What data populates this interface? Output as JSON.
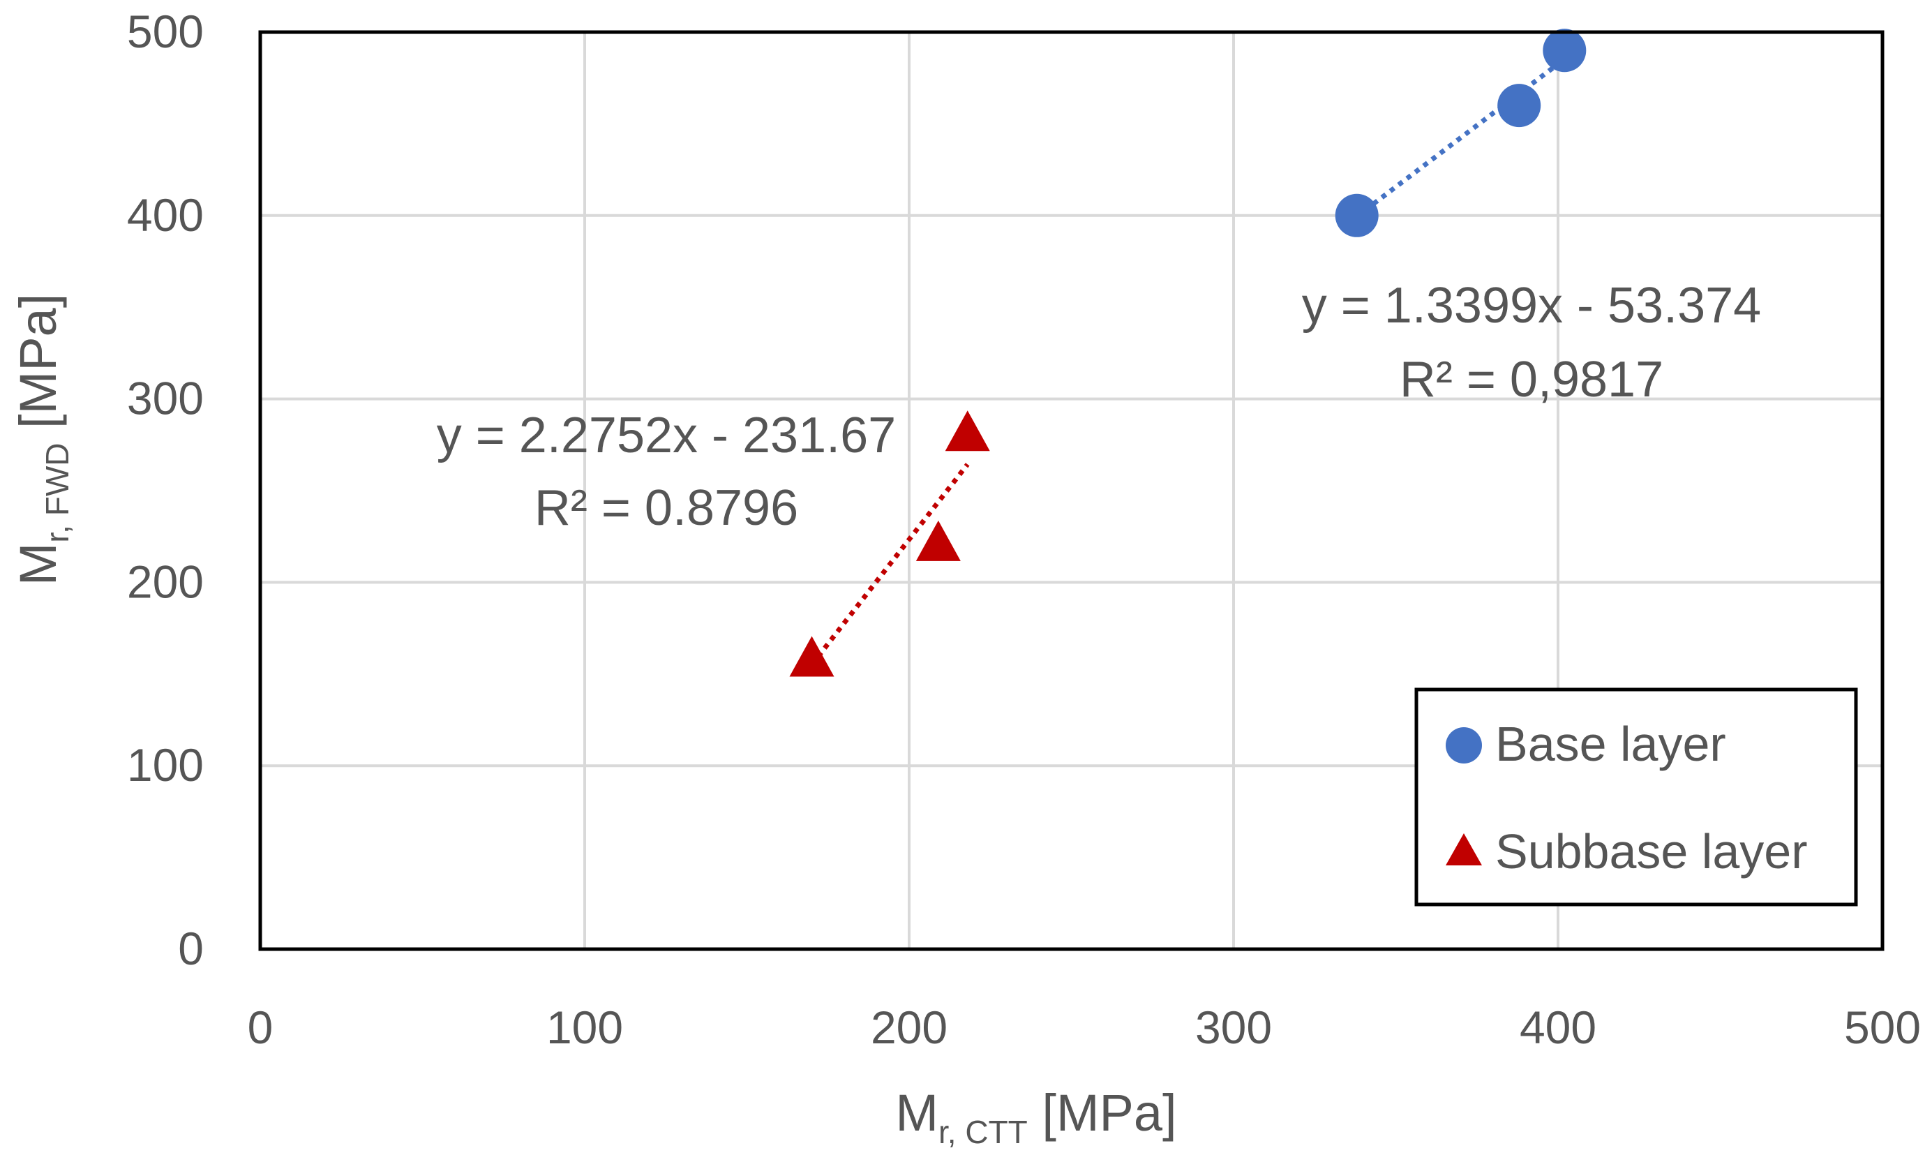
{
  "chart_data": {
    "type": "scatter",
    "title": "",
    "xlabel": {
      "main": "M",
      "sub": "r, CTT",
      "unit": " [MPa]"
    },
    "ylabel": {
      "main": "M",
      "sub": "r, FWD",
      "unit": " [MPa]"
    },
    "xlim": [
      0,
      500
    ],
    "ylim": [
      0,
      500
    ],
    "xticks": [
      0,
      100,
      200,
      300,
      400,
      500
    ],
    "yticks": [
      0,
      100,
      200,
      300,
      400,
      500
    ],
    "grid": true,
    "legend_position": "bottom-right",
    "series": [
      {
        "name": "Base layer",
        "marker": "circle",
        "color": "#4472c4",
        "points": [
          [
            338,
            400
          ],
          [
            388,
            460
          ],
          [
            402,
            490
          ]
        ],
        "trendline": {
          "slope": 1.3399,
          "intercept": -53.374,
          "x_range": [
            338,
            402
          ]
        },
        "equation": "y = 1.3399x - 53.374",
        "r2": "R² = 0,9817"
      },
      {
        "name": "Subbase layer",
        "marker": "triangle",
        "color": "#c00000",
        "points": [
          [
            170,
            157
          ],
          [
            209,
            220
          ],
          [
            218,
            280
          ]
        ],
        "trendline": {
          "slope": 2.2752,
          "intercept": -231.67,
          "x_range": [
            170,
            218
          ]
        },
        "equation": "y = 2.2752x - 231.67",
        "r2": "R² = 0.8796"
      }
    ]
  }
}
